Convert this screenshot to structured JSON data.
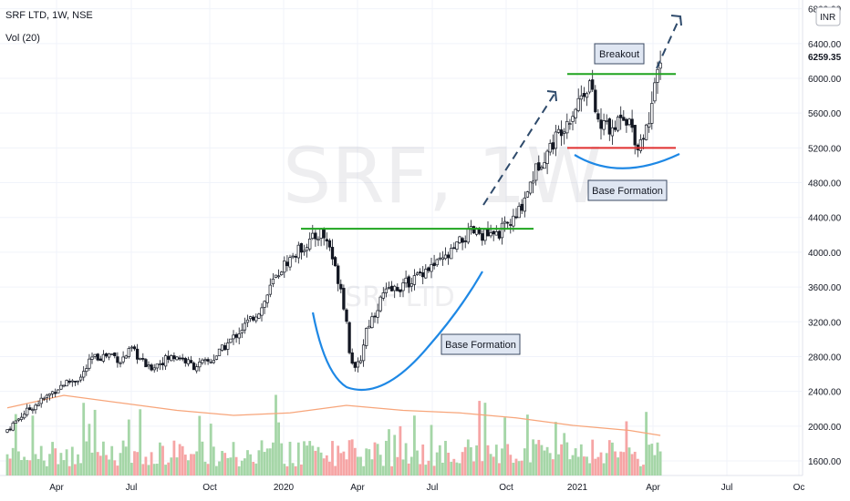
{
  "header": {
    "symbol_line": "SRF LTD, 1W, NSE",
    "volume_line": "Vol (20)"
  },
  "currency": "INR",
  "watermark": {
    "big": "SRF, 1W",
    "small": "SRF LTD"
  },
  "last_price_label": "6259.35",
  "chart_data": {
    "type": "candlestick",
    "x_axis": {
      "tick_labels": [
        "Apr",
        "Jul",
        "Oct",
        "2020",
        "Apr",
        "Jul",
        "Oct",
        "2021",
        "Apr",
        "Jul",
        "Oc"
      ],
      "range": [
        "2019-01",
        "2021-11"
      ]
    },
    "y_axis": {
      "tick_labels": [
        "1600.00",
        "2000.00",
        "2400.00",
        "2800.00",
        "3200.00",
        "3600.00",
        "4000.00",
        "4400.00",
        "4800.00",
        "5200.00",
        "5600.00",
        "6000.00",
        "6400.00",
        "6800.00"
      ],
      "range": [
        1600,
        6900
      ]
    },
    "price_path": [
      [
        0,
        1960
      ],
      [
        6,
        2150
      ],
      [
        14,
        2340
      ],
      [
        20,
        2490
      ],
      [
        26,
        2560
      ],
      [
        30,
        2780
      ],
      [
        37,
        2830
      ],
      [
        40,
        2750
      ],
      [
        44,
        2880
      ],
      [
        50,
        2660
      ],
      [
        56,
        2770
      ],
      [
        60,
        2810
      ],
      [
        66,
        2690
      ],
      [
        72,
        2750
      ],
      [
        78,
        2950
      ],
      [
        84,
        3160
      ],
      [
        90,
        3360
      ],
      [
        94,
        3660
      ],
      [
        98,
        3860
      ],
      [
        104,
        4050
      ],
      [
        108,
        4150
      ],
      [
        111,
        4230
      ],
      [
        114,
        4070
      ],
      [
        116,
        3800
      ],
      [
        118,
        3600
      ],
      [
        120,
        3200
      ],
      [
        121,
        2880
      ],
      [
        123,
        2630
      ],
      [
        125,
        2780
      ],
      [
        127,
        3120
      ],
      [
        130,
        3310
      ],
      [
        133,
        3520
      ],
      [
        136,
        3560
      ],
      [
        140,
        3620
      ],
      [
        144,
        3700
      ],
      [
        148,
        3810
      ],
      [
        152,
        3860
      ],
      [
        156,
        3950
      ],
      [
        160,
        4110
      ],
      [
        164,
        4230
      ],
      [
        168,
        4210
      ],
      [
        172,
        4170
      ],
      [
        176,
        4290
      ],
      [
        180,
        4390
      ],
      [
        184,
        4720
      ],
      [
        188,
        5020
      ],
      [
        192,
        5210
      ],
      [
        196,
        5430
      ],
      [
        200,
        5610
      ],
      [
        203,
        5810
      ],
      [
        206,
        5960
      ],
      [
        208,
        5620
      ],
      [
        210,
        5410
      ],
      [
        212,
        5510
      ],
      [
        214,
        5340
      ],
      [
        217,
        5620
      ],
      [
        220,
        5510
      ],
      [
        223,
        5230
      ],
      [
        226,
        5420
      ],
      [
        229,
        5860
      ],
      [
        231,
        6259.35
      ]
    ],
    "volume_sma_path": [
      [
        0,
        1870
      ],
      [
        20,
        1920
      ],
      [
        40,
        1890
      ],
      [
        60,
        1860
      ],
      [
        80,
        1840
      ],
      [
        100,
        1850
      ],
      [
        120,
        1880
      ],
      [
        140,
        1860
      ],
      [
        160,
        1850
      ],
      [
        180,
        1830
      ],
      [
        200,
        1800
      ],
      [
        220,
        1780
      ],
      [
        231,
        1760
      ]
    ],
    "annotations": [
      {
        "text": "Base Formation",
        "kind": "label"
      },
      {
        "text": "Breakout",
        "kind": "label"
      },
      {
        "text": "Base Formation",
        "kind": "label"
      }
    ],
    "resistance_2020": 4270,
    "resistance_2021": 6050,
    "support_2021": 5200,
    "colors": {
      "up": "#26a69a",
      "down": "#ef5350",
      "vol_up": "#a5d6a7",
      "vol_down": "#f6a5a5",
      "green_line": "#1fa41f",
      "red_line": "#e03030",
      "arc": "#1e88e5",
      "arrow": "#2e4a6b"
    }
  }
}
